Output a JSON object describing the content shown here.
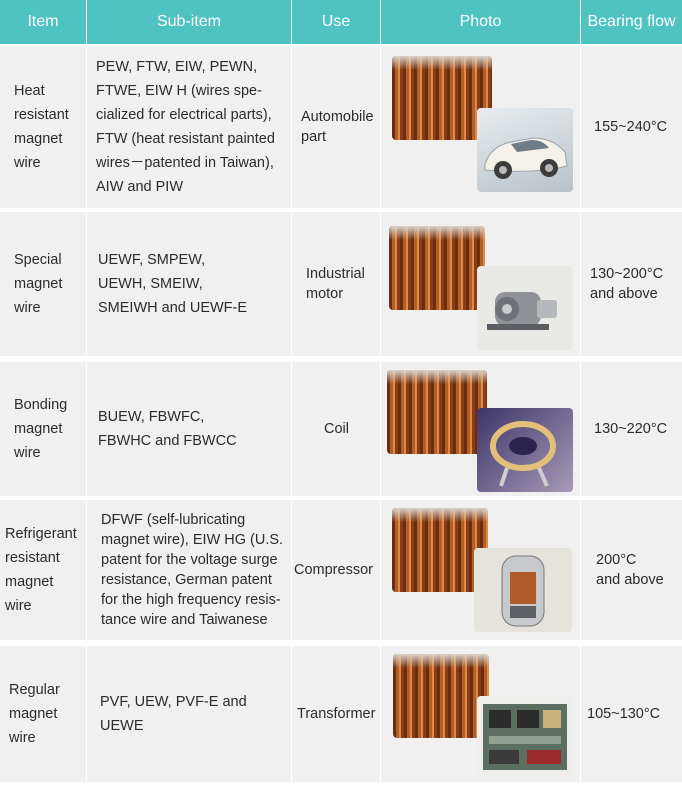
{
  "header": {
    "item": "Item",
    "subitem": "Sub-item",
    "use": "Use",
    "photo": "Photo",
    "bearing": "Bearing flow"
  },
  "rows": [
    {
      "item": "Heat\nresistant\nmagnet\nwire",
      "subitem": "PEW, FTW, EIW, PEWN,\nFTWE, EIW H (wires spe-\ncialized for electrical parts),\nFTW (heat resistant painted\nwires－patented in Taiwan),\nAIW and PIW",
      "use": "Automobile\npart",
      "bearing": "155~240°C",
      "photo": {
        "main": "magnet-wire-spools",
        "inset": "white-car"
      }
    },
    {
      "item": "Special\nmagnet\nwire",
      "subitem": "UEWF, SMPEW,\nUEWH, SMEIW,\nSMEIWH and UEWF-E",
      "use": "Industrial\nmotor",
      "bearing": "130~200°C\nand above",
      "photo": {
        "main": "magnet-wire-spools",
        "inset": "industrial-motor"
      }
    },
    {
      "item": "Bonding\nmagnet\nwire",
      "subitem": "BUEW, FBWFC,\nFBWHC and FBWCC",
      "use": "Coil",
      "bearing": "130~220°C",
      "photo": {
        "main": "magnet-wire-spools",
        "inset": "bonded-coil"
      }
    },
    {
      "item": "Refrigerant\nresistant\nmagnet\nwire",
      "subitem": "DFWF (self-lubricating\nmagnet wire), EIW HG (U.S.\npatent for the voltage surge\nresistance, German patent\nfor the high frequency resis-\ntance wire and Taiwanese",
      "use": "Compressor",
      "bearing": "200°C\nand above",
      "photo": {
        "main": "magnet-wire-spools",
        "inset": "compressor"
      }
    },
    {
      "item": "Regular\nmagnet\nwire",
      "subitem": "PVF, UEW, PVF-E and\nUEWE",
      "use": "Transformer",
      "bearing": "105~130°C",
      "photo": {
        "main": "magnet-wire-spools",
        "inset": "circuit-board-transformer"
      }
    }
  ],
  "colors": {
    "header_bg": "#4fc2c2",
    "row_bg": "#f0f0f0",
    "copper": "#b1602a"
  }
}
